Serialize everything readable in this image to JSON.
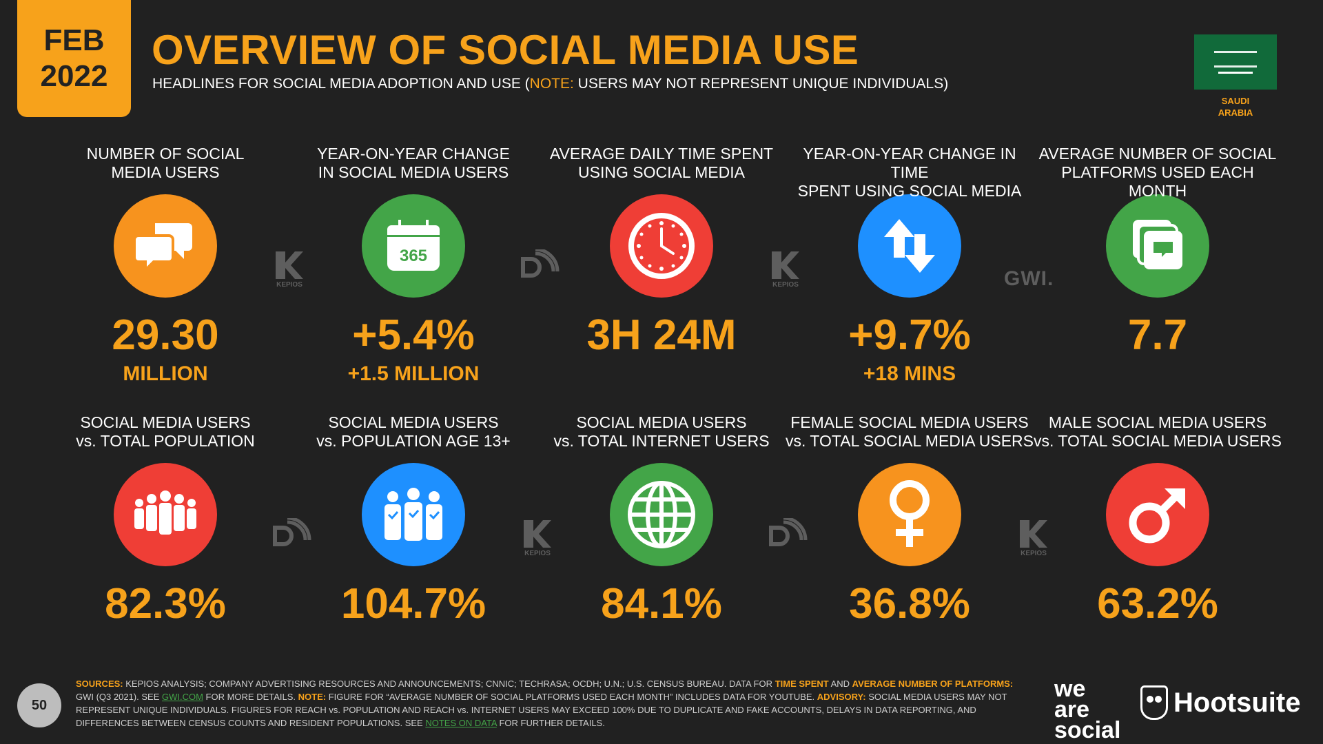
{
  "header": {
    "date_month": "FEB",
    "date_year": "2022",
    "title": "OVERVIEW OF SOCIAL MEDIA USE",
    "subtitle_pre": "HEADLINES FOR SOCIAL MEDIA ADOPTION AND USE (",
    "subtitle_note": "NOTE:",
    "subtitle_post": " USERS MAY NOT REPRESENT UNIQUE INDIVIDUALS)",
    "country_line1": "SAUDI",
    "country_line2": "ARABIA"
  },
  "row1": [
    {
      "label1": "NUMBER OF SOCIAL",
      "label2": "MEDIA USERS",
      "icon": "speech-bubbles-icon",
      "color": "#f7931e",
      "value": "29.30",
      "sub": "MILLION"
    },
    {
      "label1": "YEAR-ON-YEAR CHANGE",
      "label2": "IN SOCIAL MEDIA USERS",
      "icon": "calendar-365-icon",
      "color": "#43a548",
      "value": "+5.4%",
      "sub": "+1.5 MILLION"
    },
    {
      "label1": "AVERAGE DAILY TIME SPENT",
      "label2": "USING SOCIAL MEDIA",
      "icon": "clock-icon",
      "color": "#ef3e36",
      "value": "3H 24M",
      "sub": ""
    },
    {
      "label1": "YEAR-ON-YEAR CHANGE IN TIME",
      "label2": "SPENT USING SOCIAL MEDIA",
      "icon": "up-down-arrows-icon",
      "color": "#1e90ff",
      "value": "+9.7%",
      "sub": "+18 MINS"
    },
    {
      "label1": "AVERAGE NUMBER OF SOCIAL",
      "label2": "PLATFORMS USED EACH MONTH",
      "icon": "stacked-chat-icon",
      "color": "#43a548",
      "value": "7.7",
      "sub": ""
    }
  ],
  "row2": [
    {
      "label1": "SOCIAL MEDIA USERS",
      "label2": "vs. TOTAL POPULATION",
      "icon": "crowd-icon",
      "color": "#ef3e36",
      "value": "82.3%"
    },
    {
      "label1": "SOCIAL MEDIA USERS",
      "label2": "vs. POPULATION AGE 13+",
      "icon": "people-check-icon",
      "color": "#1e90ff",
      "value": "104.7%"
    },
    {
      "label1": "SOCIAL MEDIA USERS",
      "label2": "vs. TOTAL INTERNET USERS",
      "icon": "globe-icon",
      "color": "#43a548",
      "value": "84.1%"
    },
    {
      "label1": "FEMALE SOCIAL MEDIA USERS",
      "label2": "vs. TOTAL SOCIAL MEDIA USERS",
      "icon": "female-symbol-icon",
      "color": "#f7931e",
      "value": "36.8%"
    },
    {
      "label1": "MALE SOCIAL MEDIA USERS",
      "label2": "vs. TOTAL SOCIAL MEDIA USERS",
      "icon": "male-symbol-icon",
      "color": "#ef3e36",
      "value": "63.2%"
    }
  ],
  "watermarks": {
    "kepios": "KEPIOS",
    "gwi": "GWI."
  },
  "footer": {
    "sources_label": "SOURCES:",
    "sources_text": " KEPIOS ANALYSIS; COMPANY ADVERTISING RESOURCES AND ANNOUNCEMENTS; CNNIC; TECHRASA; OCDH; U.N.; U.S. CENSUS BUREAU. DATA FOR ",
    "time_spent": "TIME SPENT",
    "and": " AND ",
    "avg_platforms": "AVERAGE NUMBER OF PLATFORMS:",
    "gwi_text": " GWI (Q3 2021). SEE ",
    "gwi_link": "GWI.COM",
    "gwi_after": " FOR MORE DETAILS. ",
    "note_label": "NOTE:",
    "note_text": " FIGURE FOR “AVERAGE NUMBER OF SOCIAL PLATFORMS USED EACH MONTH” INCLUDES DATA FOR YOUTUBE. ",
    "advisory_label": "ADVISORY:",
    "advisory_text": " SOCIAL MEDIA USERS MAY NOT REPRESENT UNIQUE INDIVIDUALS. FIGURES FOR REACH vs. POPULATION AND REACH vs. INTERNET USERS MAY EXCEED 100% DUE TO DUPLICATE AND FAKE ACCOUNTS, DELAYS IN DATA REPORTING, AND DIFFERENCES BETWEEN CENSUS COUNTS AND RESIDENT POPULATIONS. SEE ",
    "notes_link": "NOTES ON DATA",
    "end_text": " FOR FURTHER DETAILS.",
    "page_number": "50",
    "brand_we": "we",
    "brand_are": "are",
    "brand_social": "social",
    "brand_hootsuite": "Hootsuite"
  }
}
